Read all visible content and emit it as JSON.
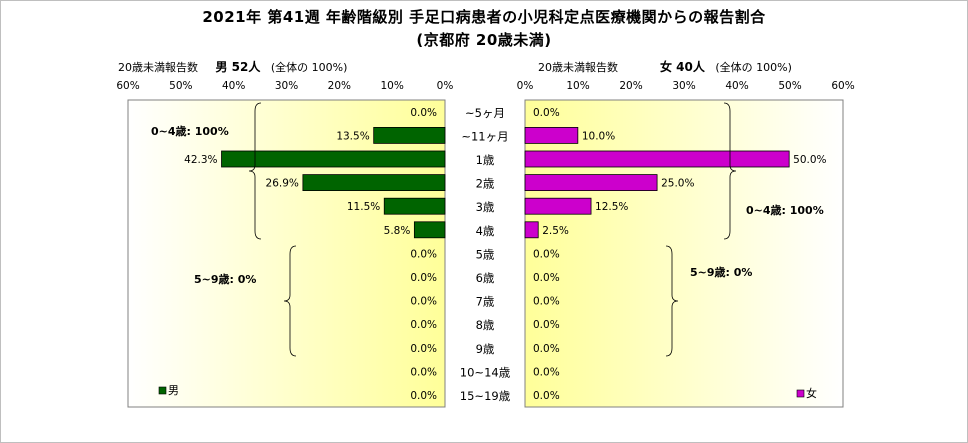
{
  "title_line1": "2021年 第41週 年齢階級別 手足口病患者の小児科定点医療機関からの報告割合",
  "title_line2": "(京都府 20歳未満)",
  "male_header": {
    "prefix": "20歳未満報告数",
    "label": "男 52人",
    "suffix": "(全体の 100%)"
  },
  "female_header": {
    "prefix": "20歳未満報告数",
    "label": "女 40人",
    "suffix": "(全体の 100%)"
  },
  "chart_data": {
    "type": "bar",
    "orientation": "horizontal-butterfly",
    "categories": [
      "~5ヶ月",
      "~11ヶ月",
      "1歳",
      "2歳",
      "3歳",
      "4歳",
      "5歳",
      "6歳",
      "7歳",
      "8歳",
      "9歳",
      "10~14歳",
      "15~19歳"
    ],
    "series": [
      {
        "name": "男",
        "color": "#006400",
        "values": [
          0.0,
          13.5,
          42.3,
          26.9,
          11.5,
          5.8,
          0.0,
          0.0,
          0.0,
          0.0,
          0.0,
          0.0,
          0.0
        ],
        "labels": [
          "0.0%",
          "13.5%",
          "42.3%",
          "26.9%",
          "11.5%",
          "5.8%",
          "0.0%",
          "0.0%",
          "0.0%",
          "0.0%",
          "0.0%",
          "0.0%",
          "0.0%"
        ]
      },
      {
        "name": "女",
        "color": "#cc00cc",
        "values": [
          0.0,
          10.0,
          50.0,
          25.0,
          12.5,
          2.5,
          0.0,
          0.0,
          0.0,
          0.0,
          0.0,
          0.0,
          0.0
        ],
        "labels": [
          "0.0%",
          "10.0%",
          "50.0%",
          "25.0%",
          "12.5%",
          "2.5%",
          "0.0%",
          "0.0%",
          "0.0%",
          "0.0%",
          "0.0%",
          "0.0%",
          "0.0%"
        ]
      }
    ],
    "xlim": [
      0,
      60
    ],
    "male_ticks": [
      "60%",
      "50%",
      "40%",
      "30%",
      "20%",
      "10%",
      "0%"
    ],
    "female_ticks": [
      "0%",
      "10%",
      "20%",
      "30%",
      "40%",
      "50%",
      "60%"
    ],
    "annotations": {
      "male_0_4": "0~4歳: 100%",
      "male_5_9": "5~9歳: 0%",
      "female_0_4": "0~4歳: 100%",
      "female_5_9": "5~9歳: 0%"
    },
    "legend": {
      "male": "男",
      "female": "女",
      "placement": "bottom-left / bottom-left"
    }
  }
}
